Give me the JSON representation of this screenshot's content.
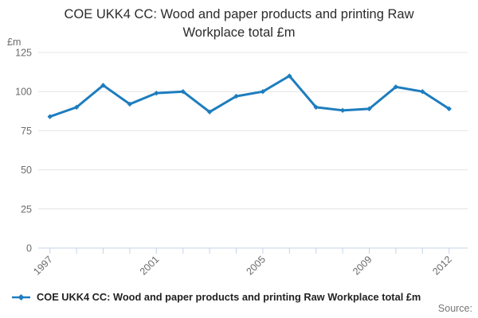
{
  "title": "COE UKK4 CC: Wood and paper products and printing Raw Workplace total £m",
  "y_axis": {
    "unit_label": "£m"
  },
  "legend": {
    "label": "COE UKK4 CC: Wood and paper products and printing Raw Workplace total £m"
  },
  "source_label": "Source:",
  "colors": {
    "line": "#1d7dbe",
    "grid": "#e4e4e4",
    "axis": "#c6d3e9",
    "tick_text": "#6b6b6b",
    "title_text": "#2b2b2b"
  },
  "chart_data": {
    "type": "line",
    "title": "COE UKK4 CC: Wood and paper products and printing Raw Workplace total £m",
    "x": [
      1997,
      1998,
      1999,
      2000,
      2001,
      2002,
      2003,
      2004,
      2005,
      2006,
      2007,
      2008,
      2009,
      2010,
      2011,
      2012
    ],
    "series": [
      {
        "name": "COE UKK4 CC: Wood and paper products and printing Raw Workplace total £m",
        "values": [
          84,
          90,
          104,
          92,
          99,
          100,
          87,
          97,
          100,
          110,
          90,
          88,
          89,
          103,
          100,
          89
        ]
      }
    ],
    "xticks_labeled": [
      1997,
      2001,
      2005,
      2009,
      2012
    ],
    "yticks": [
      0,
      25,
      50,
      75,
      100,
      125
    ],
    "ylim": [
      0,
      125
    ],
    "xlabel": "",
    "ylabel": "£m",
    "grid": true,
    "legend_position": "bottom",
    "marker": "diamond"
  }
}
